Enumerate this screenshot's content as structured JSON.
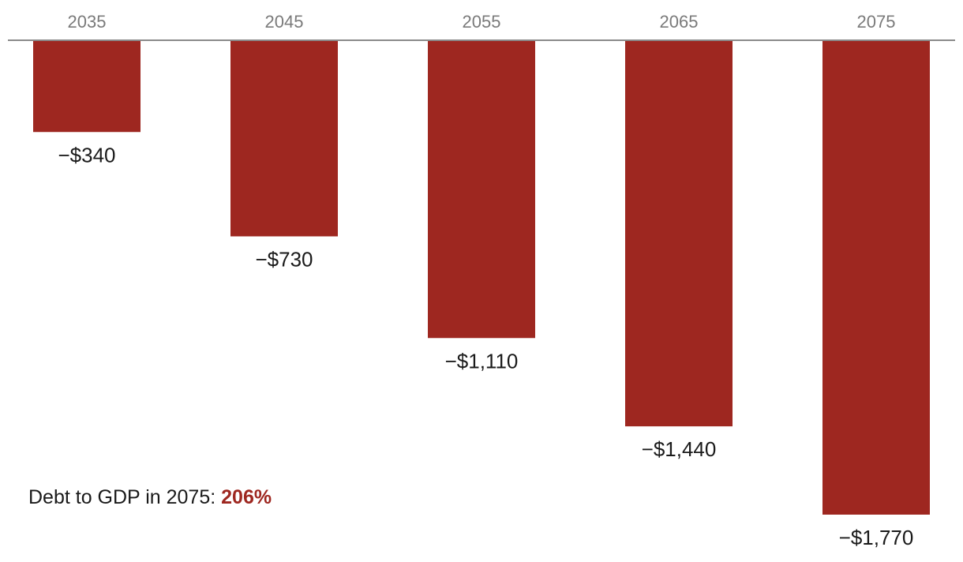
{
  "chart_data": {
    "type": "bar",
    "title": "",
    "xlabel": "",
    "ylabel": "",
    "categories": [
      "2035",
      "2045",
      "2055",
      "2065",
      "2075"
    ],
    "values": [
      -340,
      -730,
      -1110,
      -1440,
      -1770
    ],
    "value_labels": [
      "−$340",
      "−$730",
      "−$1,110",
      "−$1,440",
      "−$1,770"
    ],
    "ylim": [
      -1770,
      0
    ],
    "x_axis_position": "top",
    "grid": false,
    "bar_color": "#9e2720"
  },
  "annotation": {
    "label": "Debt to GDP in 2075:",
    "value": "206%",
    "value_color": "#9e2720"
  }
}
